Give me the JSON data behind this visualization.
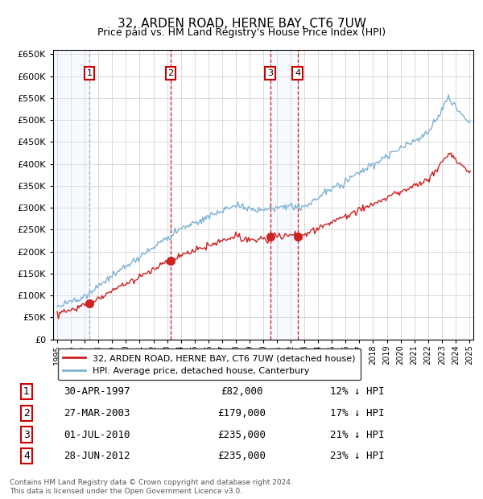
{
  "title": "32, ARDEN ROAD, HERNE BAY, CT6 7UW",
  "subtitle": "Price paid vs. HM Land Registry's House Price Index (HPI)",
  "legend_line1": "32, ARDEN ROAD, HERNE BAY, CT6 7UW (detached house)",
  "legend_line2": "HPI: Average price, detached house, Canterbury",
  "footer1": "Contains HM Land Registry data © Crown copyright and database right 2024.",
  "footer2": "This data is licensed under the Open Government Licence v3.0.",
  "transactions": [
    {
      "num": 1,
      "date": "30-APR-1997",
      "price": 82000,
      "pct": "12% ↓ HPI",
      "year": 1997.33
    },
    {
      "num": 2,
      "date": "27-MAR-2003",
      "price": 179000,
      "pct": "17% ↓ HPI",
      "year": 2003.25
    },
    {
      "num": 3,
      "date": "01-JUL-2010",
      "price": 235000,
      "pct": "21% ↓ HPI",
      "year": 2010.5
    },
    {
      "num": 4,
      "date": "28-JUN-2012",
      "price": 235000,
      "pct": "23% ↓ HPI",
      "year": 2012.5
    }
  ],
  "ylim": [
    0,
    660000
  ],
  "yticks": [
    0,
    50000,
    100000,
    150000,
    200000,
    250000,
    300000,
    350000,
    400000,
    450000,
    500000,
    550000,
    600000,
    650000
  ],
  "xlim_start": 1994.7,
  "xlim_end": 2025.3,
  "plot_bg": "#ffffff",
  "grid_color": "#cccccc",
  "hpi_color": "#7fb3d3",
  "price_color": "#cc2222",
  "transaction_box_color": "#cc0000",
  "shade_color": "#ddeeff",
  "vline1_color": "#999999",
  "vline_color": "#cc0000"
}
